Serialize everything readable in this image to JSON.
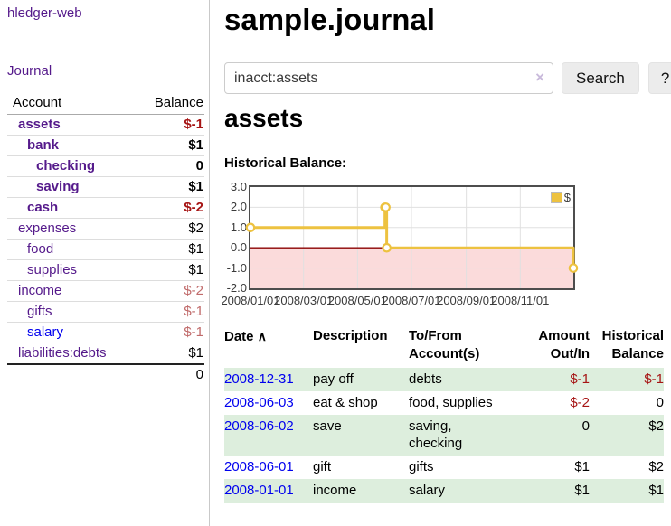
{
  "palette": {
    "link_purple": "#551a8b",
    "link_blue": "#0000ee",
    "negative_strong": "#a61414",
    "negative_muted": "#c06a6a",
    "row_green": "#ddeedd",
    "chart_line": "#EDC240"
  },
  "sidebar": {
    "brand": "hledger-web",
    "nav_journal": "Journal",
    "header": {
      "account": "Account",
      "balance": "Balance"
    },
    "accounts": [
      {
        "name": "assets",
        "balance": "$-1"
      },
      {
        "name": "bank",
        "balance": "$1"
      },
      {
        "name": "checking",
        "balance": "0"
      },
      {
        "name": "saving",
        "balance": "$1"
      },
      {
        "name": "cash",
        "balance": "$-2"
      },
      {
        "name": "expenses",
        "balance": "$2"
      },
      {
        "name": "food",
        "balance": "$1"
      },
      {
        "name": "supplies",
        "balance": "$1"
      },
      {
        "name": "income",
        "balance": "$-2"
      },
      {
        "name": "gifts",
        "balance": "$-1"
      },
      {
        "name": "salary",
        "balance": "$-1"
      },
      {
        "name": "liabilities:debts",
        "balance": "$1"
      }
    ],
    "total": "0"
  },
  "main": {
    "title": "sample.journal",
    "search": {
      "value": "inacct:assets",
      "clear_icon": "×",
      "search_label": "Search",
      "help_label": "?"
    },
    "account_title": "assets",
    "chart_label": "Historical Balance:"
  },
  "chart_data": {
    "type": "line",
    "title": "Historical Balance:",
    "step": true,
    "line_color": "#EDC240",
    "negative_fill": "#fbdbdb",
    "zero_line_color": "#8b0000",
    "ylim": [
      -2,
      3
    ],
    "y_ticks": [
      3.0,
      2.0,
      1.0,
      0.0,
      -1.0,
      -2.0
    ],
    "x_ticks": [
      "2008/01/01",
      "2008/03/01",
      "2008/05/01",
      "2008/07/01",
      "2008/09/01",
      "2008/11/01"
    ],
    "x_tick_days": [
      0,
      60,
      121,
      182,
      244,
      305
    ],
    "x_range_days": [
      0,
      365
    ],
    "legend_position": "top-right",
    "series": [
      {
        "name": "$",
        "points": [
          {
            "date": "2008-01-01",
            "day": 0,
            "balance": 1
          },
          {
            "date": "2008-06-01",
            "day": 152,
            "balance": 2
          },
          {
            "date": "2008-06-02",
            "day": 153,
            "balance": 2
          },
          {
            "date": "2008-06-03",
            "day": 154,
            "balance": 0
          },
          {
            "date": "2008-12-31",
            "day": 365,
            "balance": -1
          }
        ]
      }
    ]
  },
  "register": {
    "headers": {
      "date": "Date",
      "sort_icon": "∧",
      "description": "Description",
      "accounts": "To/From Account(s)",
      "amount": "Amount Out/In",
      "balance": "Historical Balance"
    },
    "rows": [
      {
        "date": "2008-12-31",
        "description": "pay off",
        "accounts": "debts",
        "amount": "$-1",
        "balance": "$-1"
      },
      {
        "date": "2008-06-03",
        "description": "eat & shop",
        "accounts": "food, supplies",
        "amount": "$-2",
        "balance": "0"
      },
      {
        "date": "2008-06-02",
        "description": "save",
        "accounts": "saving, checking",
        "amount": "0",
        "balance": "$2"
      },
      {
        "date": "2008-06-01",
        "description": "gift",
        "accounts": "gifts",
        "amount": "$1",
        "balance": "$2"
      },
      {
        "date": "2008-01-01",
        "description": "income",
        "accounts": "salary",
        "amount": "$1",
        "balance": "$1"
      }
    ]
  }
}
